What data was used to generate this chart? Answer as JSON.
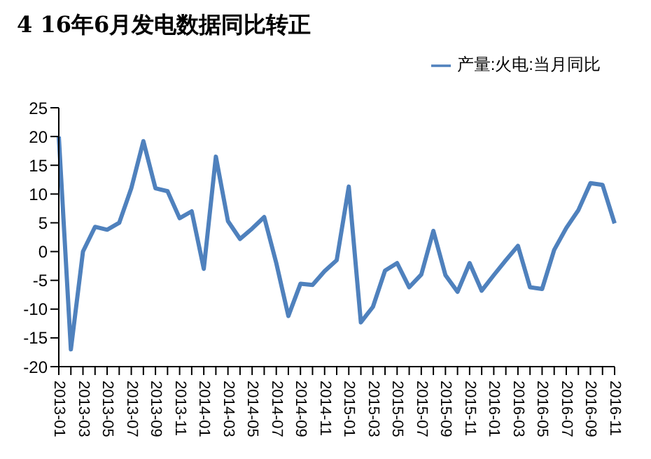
{
  "chart_data": {
    "type": "line",
    "title": "4 16年6月发电数据同比转正",
    "categories": [
      "2013-01",
      null,
      "2013-03",
      null,
      "2013-05",
      null,
      "2013-07",
      null,
      "2013-09",
      null,
      "2013-11",
      null,
      "2014-01",
      null,
      "2014-03",
      null,
      "2014-05",
      null,
      "2014-07",
      null,
      "2014-09",
      null,
      "2014-11",
      null,
      "2015-01",
      null,
      "2015-03",
      null,
      "2015-05",
      null,
      "2015-07",
      null,
      "2015-09",
      null,
      "2015-11",
      null,
      "2016-01",
      null,
      "2016-03",
      null,
      "2016-05",
      null,
      "2016-07",
      null,
      "2016-09",
      null,
      "2016-11"
    ],
    "series": [
      {
        "name": "产量:火电:当月同比",
        "color": "#4f81bd",
        "values": [
          20,
          -17,
          0,
          4.3,
          3.8,
          5,
          11,
          19.2,
          11,
          10.5,
          5.8,
          7,
          -3,
          16.5,
          5.3,
          2.2,
          4,
          6,
          -2,
          -11.2,
          -5.6,
          -5.8,
          -3.4,
          -1.5,
          11.3,
          -12.3,
          -9.6,
          -3.3,
          -2,
          -6.2,
          -4,
          3.6,
          -4.1,
          -7,
          -2,
          -6.8,
          -4.1,
          -1.5,
          1,
          -6.2,
          -6.5,
          0.3,
          4.1,
          7.2,
          11.9,
          11.6,
          4.9
        ]
      }
    ],
    "ylim": [
      -20,
      25
    ],
    "yticks": [
      -20,
      -15,
      -10,
      -5,
      0,
      5,
      10,
      15,
      20,
      25
    ],
    "grid": false,
    "legend": "top right",
    "marker": "none",
    "line_style": "solid"
  }
}
